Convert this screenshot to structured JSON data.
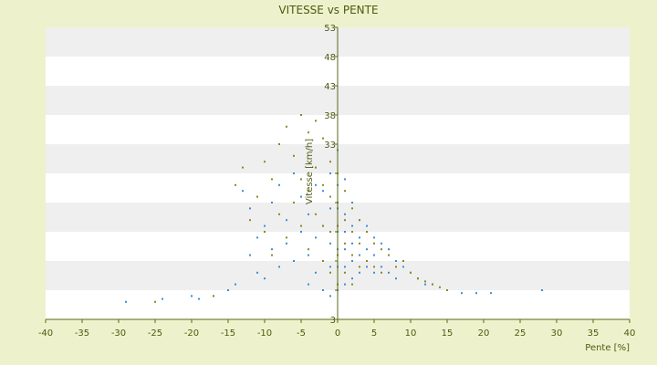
{
  "chart_data": {
    "type": "scatter",
    "title": "VITESSE vs PENTE",
    "xlabel": "Pente [%]",
    "ylabel": "Vitesse [km/h]",
    "xlim": [
      -40,
      40
    ],
    "ylim": [
      3,
      53
    ],
    "xticks": [
      -40,
      -35,
      -30,
      -25,
      -20,
      -15,
      -10,
      -5,
      0,
      5,
      10,
      15,
      20,
      25,
      30,
      35,
      40
    ],
    "yticks": [
      3,
      8,
      13,
      18,
      23,
      28,
      33,
      38,
      43,
      48,
      53
    ],
    "y_tick_labels_shown": [
      "3",
      "",
      "",
      "",
      "",
      "",
      "33",
      "38",
      "43",
      "48",
      "53"
    ],
    "grid": "horizontal alternating bands",
    "colors": {
      "band_light": "#ffffff",
      "band_grey": "#efefef",
      "points_a": "#3a8fd0",
      "points_b": "#8a8a1a",
      "axis": "#5a6a14"
    },
    "series": [
      {
        "color": "#3a8fd0",
        "x": [
          -29,
          -24,
          -20,
          -19,
          -17,
          -15,
          -14,
          -13,
          -12,
          -12,
          -11,
          -11,
          -10,
          -10,
          -9,
          -9,
          -8,
          -8,
          -7,
          -7,
          -6,
          -6,
          -5,
          -5,
          -4,
          -4,
          -4,
          -3,
          -3,
          -3,
          -2,
          -2,
          -2,
          -2,
          -1,
          -1,
          -1,
          -1,
          -1,
          0,
          0,
          0,
          0,
          0,
          0,
          0,
          1,
          1,
          1,
          1,
          1,
          1,
          2,
          2,
          2,
          2,
          2,
          3,
          3,
          3,
          3,
          4,
          4,
          4,
          5,
          5,
          5,
          6,
          6,
          7,
          7,
          8,
          8,
          9,
          10,
          11,
          12,
          13,
          15,
          17,
          19,
          21,
          28
        ],
        "y": [
          6,
          6.5,
          7,
          6.5,
          7,
          8,
          9,
          25,
          14,
          22,
          17,
          11,
          19,
          10,
          23,
          15,
          26,
          12,
          20,
          16,
          28,
          13,
          24,
          18,
          21,
          14,
          9,
          26,
          17,
          11,
          25,
          19,
          13,
          8,
          28,
          22,
          16,
          12,
          7,
          32,
          26,
          22,
          18,
          15,
          12,
          8,
          27,
          21,
          18,
          15,
          12,
          9,
          23,
          19,
          16,
          13,
          10,
          20,
          17,
          14,
          11,
          19,
          15,
          12,
          17,
          14,
          11,
          16,
          12,
          15,
          11,
          13,
          10,
          12,
          11,
          10,
          9,
          9,
          8,
          7.5,
          7.5,
          7.5,
          8
        ]
      },
      {
        "color": "#8a8a1a",
        "x": [
          -25,
          -17,
          -14,
          -13,
          -12,
          -11,
          -10,
          -10,
          -9,
          -9,
          -8,
          -8,
          -7,
          -7,
          -6,
          -6,
          -5,
          -5,
          -5,
          -4,
          -4,
          -4,
          -3,
          -3,
          -3,
          -2,
          -2,
          -2,
          -2,
          -1,
          -1,
          -1,
          -1,
          0,
          0,
          0,
          0,
          0,
          1,
          1,
          1,
          1,
          2,
          2,
          2,
          2,
          3,
          3,
          3,
          4,
          4,
          5,
          5,
          6,
          6,
          7,
          8,
          9,
          10,
          11,
          12,
          13,
          14,
          15
        ],
        "y": [
          6,
          7,
          26,
          29,
          20,
          24,
          30,
          18,
          27,
          14,
          33,
          21,
          36,
          17,
          31,
          23,
          38,
          27,
          19,
          35,
          25,
          15,
          37,
          29,
          21,
          34,
          26,
          19,
          13,
          30,
          24,
          18,
          11,
          28,
          23,
          19,
          14,
          9,
          25,
          20,
          16,
          11,
          22,
          18,
          14,
          9,
          20,
          16,
          12,
          18,
          13,
          16,
          12,
          15,
          11,
          14,
          12,
          13,
          11,
          10,
          9.5,
          9,
          8.5,
          8
        ]
      }
    ]
  }
}
